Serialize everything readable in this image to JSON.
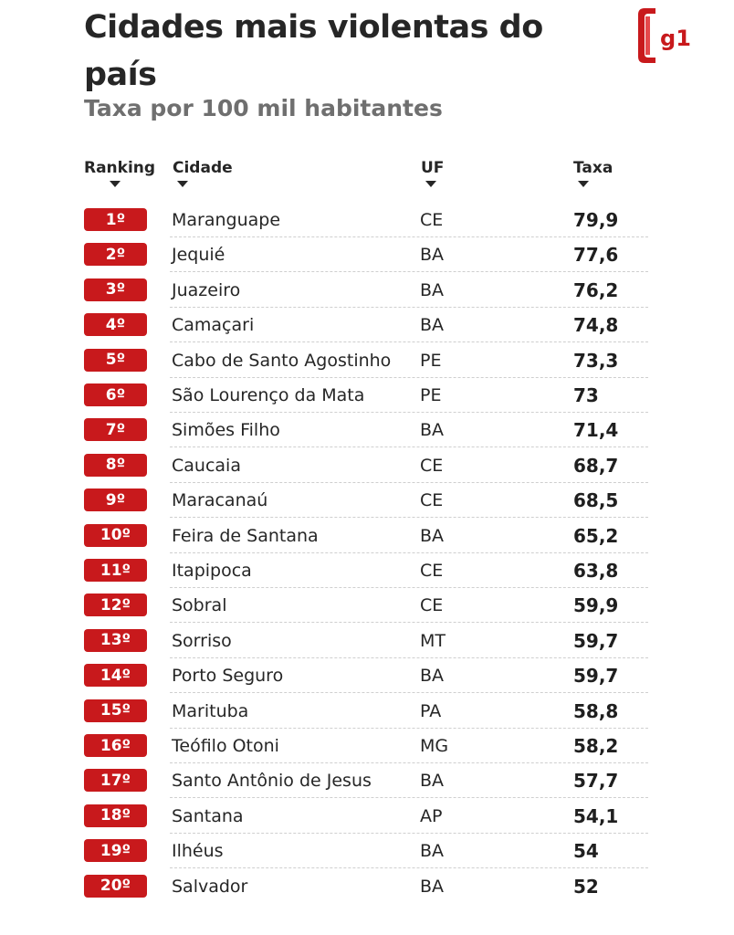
{
  "header": {
    "title": "Cidades mais violentas do país",
    "subtitle": "Taxa por 100 mil habitantes",
    "logo_text": "g1"
  },
  "colors": {
    "accent": "#c8191c",
    "text": "#262626",
    "subtitle": "#6f6f6f"
  },
  "chart_data": {
    "type": "table",
    "title": "Cidades mais violentas do país",
    "subtitle": "Taxa por 100 mil habitantes",
    "columns": [
      "Ranking",
      "Cidade",
      "UF",
      "Taxa"
    ],
    "rows": [
      {
        "rank": "1º",
        "city": "Maranguape",
        "uf": "CE",
        "rate": "79,9"
      },
      {
        "rank": "2º",
        "city": "Jequié",
        "uf": "BA",
        "rate": "77,6"
      },
      {
        "rank": "3º",
        "city": "Juazeiro",
        "uf": "BA",
        "rate": "76,2"
      },
      {
        "rank": "4º",
        "city": "Camaçari",
        "uf": "BA",
        "rate": "74,8"
      },
      {
        "rank": "5º",
        "city": "Cabo de Santo Agostinho",
        "uf": "PE",
        "rate": "73,3"
      },
      {
        "rank": "6º",
        "city": "São Lourenço da Mata",
        "uf": "PE",
        "rate": "73"
      },
      {
        "rank": "7º",
        "city": "Simões Filho",
        "uf": "BA",
        "rate": "71,4"
      },
      {
        "rank": "8º",
        "city": "Caucaia",
        "uf": "CE",
        "rate": "68,7"
      },
      {
        "rank": "9º",
        "city": "Maracanaú",
        "uf": "CE",
        "rate": "68,5"
      },
      {
        "rank": "10º",
        "city": "Feira de Santana",
        "uf": "BA",
        "rate": "65,2"
      },
      {
        "rank": "11º",
        "city": "Itapipoca",
        "uf": "CE",
        "rate": "63,8"
      },
      {
        "rank": "12º",
        "city": "Sobral",
        "uf": "CE",
        "rate": "59,9"
      },
      {
        "rank": "13º",
        "city": "Sorriso",
        "uf": "MT",
        "rate": "59,7"
      },
      {
        "rank": "14º",
        "city": "Porto Seguro",
        "uf": "BA",
        "rate": "59,7"
      },
      {
        "rank": "15º",
        "city": "Marituba",
        "uf": "PA",
        "rate": "58,8"
      },
      {
        "rank": "16º",
        "city": "Teófilo Otoni",
        "uf": "MG",
        "rate": "58,2"
      },
      {
        "rank": "17º",
        "city": "Santo Antônio de Jesus",
        "uf": "BA",
        "rate": "57,7"
      },
      {
        "rank": "18º",
        "city": "Santana",
        "uf": "AP",
        "rate": "54,1"
      },
      {
        "rank": "19º",
        "city": "Ilhéus",
        "uf": "BA",
        "rate": "54"
      },
      {
        "rank": "20º",
        "city": "Salvador",
        "uf": "BA",
        "rate": "52"
      }
    ]
  }
}
